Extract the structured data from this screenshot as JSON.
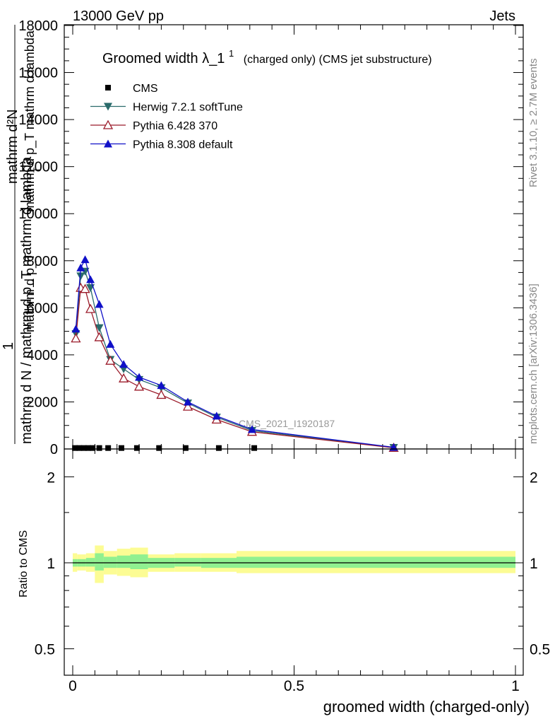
{
  "header": {
    "left": "13000 GeV pp",
    "right": "Jets"
  },
  "side_labels": {
    "rivet": "Rivet 3.1.10, ≥ 2.7M events",
    "mcplots": "mcplots.cern.ch [arXiv:1306.3436]"
  },
  "chart_data": [
    {
      "type": "line",
      "title": "Groomed width",
      "title_symbol": "λ_1",
      "title_sup": "1",
      "title_suffix": "(charged only) (CMS jet substructure)",
      "ylabel_top": "mathrm d²N",
      "ylabel_bottom": "mathrm d N / mathrm d p_T mathrm d lambda",
      "ylabel_one": "1",
      "ylabel_inner_top": "mathrm d p_T mathrm d lambda",
      "ylabel_inner_bottom": "mathrm d p_T",
      "ylabel_sub": "T",
      "watermark": "CMS_2021_I1920187",
      "xlim": [
        0,
        1
      ],
      "ylim": [
        0,
        18000
      ],
      "yticks": [
        0,
        2000,
        4000,
        6000,
        8000,
        10000,
        12000,
        14000,
        16000,
        18000
      ],
      "ytick_labels": [
        "0",
        "2000",
        "4000",
        "6000",
        "8000",
        "10000",
        "12000",
        "14000",
        "16000",
        "18000"
      ],
      "legend_position": "top-left",
      "series": [
        {
          "name": "CMS",
          "color": "#000000",
          "marker": "square",
          "x": [
            0.005,
            0.015,
            0.025,
            0.035,
            0.045,
            0.06,
            0.08,
            0.11,
            0.145,
            0.195,
            0.255,
            0.33,
            0.41
          ],
          "y": [
            40,
            40,
            40,
            40,
            40,
            40,
            40,
            40,
            40,
            40,
            40,
            40,
            40
          ]
        },
        {
          "name": "Herwig 7.2.1 softTune",
          "color": "#2a6b6b",
          "marker": "triangle-down",
          "x": [
            0.007,
            0.018,
            0.028,
            0.04,
            0.06,
            0.085,
            0.115,
            0.15,
            0.2,
            0.26,
            0.325,
            0.405,
            0.725
          ],
          "y": [
            4900,
            7350,
            7550,
            6850,
            5150,
            3800,
            3400,
            2950,
            2600,
            1950,
            1350,
            780,
            60
          ]
        },
        {
          "name": "Pythia 6.428 370",
          "color": "#9b1b2a",
          "marker": "triangle-open",
          "x": [
            0.007,
            0.018,
            0.028,
            0.04,
            0.06,
            0.085,
            0.115,
            0.15,
            0.2,
            0.26,
            0.325,
            0.405,
            0.725
          ],
          "y": [
            4700,
            6850,
            6800,
            5950,
            4750,
            3750,
            3000,
            2650,
            2300,
            1800,
            1250,
            730,
            50
          ]
        },
        {
          "name": "Pythia 8.308 default",
          "color": "#1010c8",
          "marker": "triangle-up",
          "x": [
            0.007,
            0.018,
            0.028,
            0.04,
            0.06,
            0.085,
            0.115,
            0.15,
            0.2,
            0.26,
            0.325,
            0.405,
            0.725
          ],
          "y": [
            5100,
            7700,
            8050,
            7200,
            6150,
            4450,
            3600,
            3050,
            2700,
            2000,
            1400,
            830,
            70
          ]
        }
      ]
    },
    {
      "type": "area",
      "ylabel": "Ratio to CMS",
      "xlabel": "groomed width (charged-only)",
      "xlim": [
        0,
        1
      ],
      "ylim": [
        0.4,
        2.3
      ],
      "yscale": "log",
      "yticks": [
        0.5,
        1,
        2
      ],
      "ytick_labels": [
        "0.5",
        "1",
        "2"
      ],
      "xticks": [
        0,
        0.5,
        1
      ],
      "xtick_labels": [
        "0",
        "0.5",
        "1"
      ],
      "reference_line": 1,
      "band_colors": {
        "inner": "#90f090",
        "outer": "#fcfc94"
      },
      "bands": [
        {
          "x0": 0.0,
          "x1": 0.01,
          "inner": [
            0.97,
            1.03
          ],
          "outer": [
            0.93,
            1.08
          ]
        },
        {
          "x0": 0.01,
          "x1": 0.02,
          "inner": [
            0.97,
            1.03
          ],
          "outer": [
            0.94,
            1.07
          ]
        },
        {
          "x0": 0.02,
          "x1": 0.03,
          "inner": [
            0.97,
            1.03
          ],
          "outer": [
            0.94,
            1.07
          ]
        },
        {
          "x0": 0.03,
          "x1": 0.05,
          "inner": [
            0.97,
            1.04
          ],
          "outer": [
            0.93,
            1.08
          ]
        },
        {
          "x0": 0.05,
          "x1": 0.07,
          "inner": [
            0.94,
            1.08
          ],
          "outer": [
            0.85,
            1.15
          ]
        },
        {
          "x0": 0.07,
          "x1": 0.1,
          "inner": [
            0.96,
            1.05
          ],
          "outer": [
            0.91,
            1.1
          ]
        },
        {
          "x0": 0.1,
          "x1": 0.13,
          "inner": [
            0.96,
            1.06
          ],
          "outer": [
            0.9,
            1.12
          ]
        },
        {
          "x0": 0.13,
          "x1": 0.17,
          "inner": [
            0.95,
            1.07
          ],
          "outer": [
            0.89,
            1.13
          ]
        },
        {
          "x0": 0.17,
          "x1": 0.23,
          "inner": [
            0.96,
            1.04
          ],
          "outer": [
            0.93,
            1.07
          ]
        },
        {
          "x0": 0.23,
          "x1": 0.29,
          "inner": [
            0.97,
            1.04
          ],
          "outer": [
            0.93,
            1.08
          ]
        },
        {
          "x0": 0.29,
          "x1": 0.37,
          "inner": [
            0.96,
            1.04
          ],
          "outer": [
            0.93,
            1.08
          ]
        },
        {
          "x0": 0.37,
          "x1": 1.0,
          "inner": [
            0.96,
            1.05
          ],
          "outer": [
            0.92,
            1.1
          ]
        }
      ]
    }
  ]
}
